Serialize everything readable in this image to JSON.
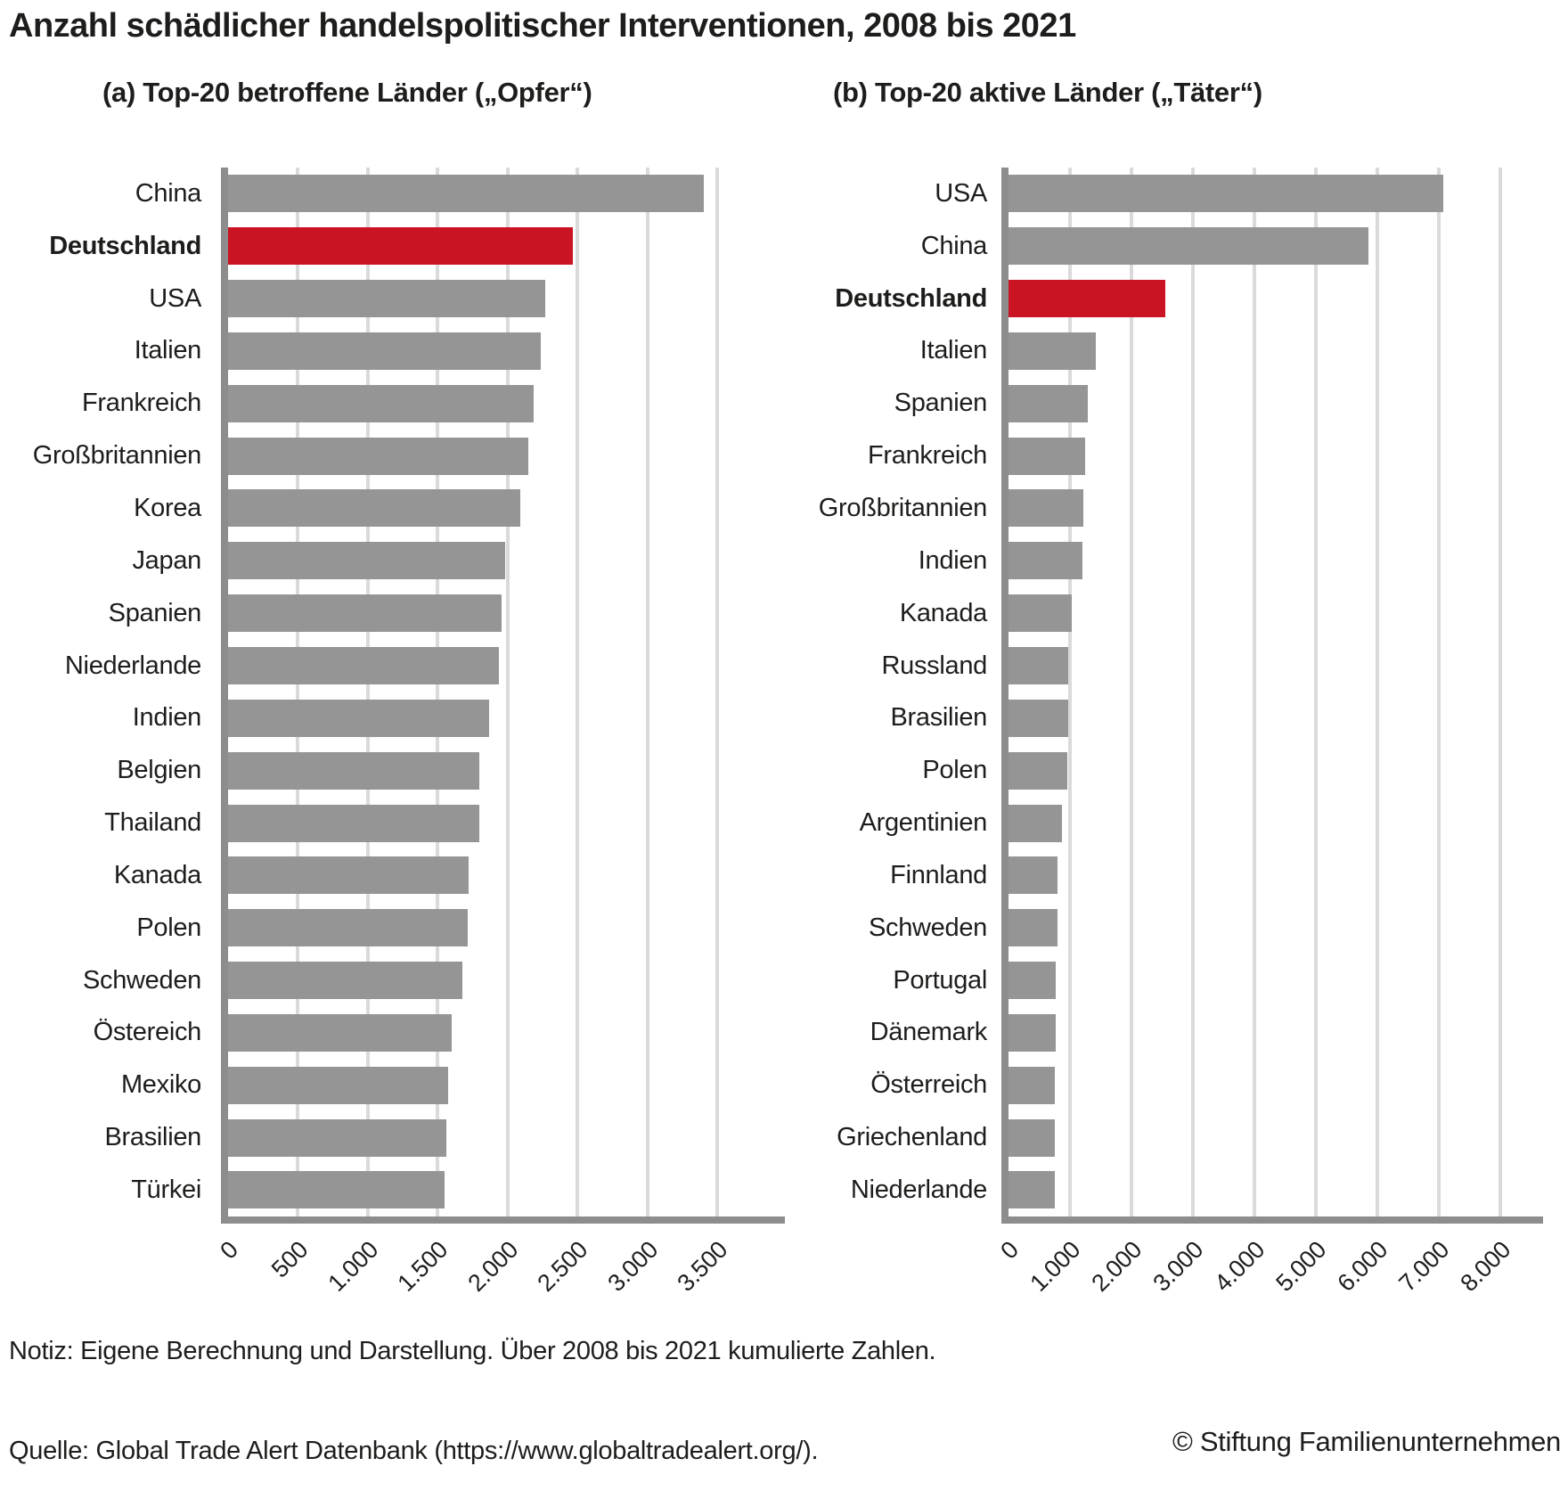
{
  "title": "Anzahl schädlicher handelspolitischer Interventionen, 2008 bis 2021",
  "footnote": "Notiz: Eigene Berechnung und Darstellung. Über 2008 bis 2021 kumulierte Zahlen.",
  "source": "Quelle: Global Trade Alert Datenbank (https://www.globaltradealert.org/).",
  "copyright": "© Stiftung Familienunternehmen",
  "colors": {
    "bar_gray": "#959595",
    "bar_red": "#cb1423",
    "axis": "#8d8d8d",
    "gridline": "#dadada",
    "text": "#1d1d1b"
  },
  "chart_data": [
    {
      "type": "bar",
      "orientation": "horizontal",
      "title": "(a) Top-20 betroffene Länder („Opfer“)",
      "categories": [
        "China",
        "Deutschland",
        "USA",
        "Italien",
        "Frankreich",
        "Großbritannien",
        "Korea",
        "Japan",
        "Spanien",
        "Niederlande",
        "Indien",
        "Belgien",
        "Thailand",
        "Kanada",
        "Polen",
        "Schweden",
        "Östereich",
        "Mexiko",
        "Brasilien",
        "Türkei"
      ],
      "values": [
        3405,
        2465,
        2270,
        2235,
        2185,
        2150,
        2090,
        1980,
        1960,
        1940,
        1870,
        1800,
        1795,
        1720,
        1715,
        1675,
        1600,
        1575,
        1560,
        1550
      ],
      "highlight_category": "Deutschland",
      "highlight_color": "#cb1423",
      "xlabel": "",
      "ylabel": "",
      "xlim": [
        0,
        3500
      ],
      "xticks": [
        "0",
        "500",
        "1.000",
        "1.500",
        "2.000",
        "2.500",
        "3.000",
        "3.500"
      ],
      "grid": true,
      "legend": false
    },
    {
      "type": "bar",
      "orientation": "horizontal",
      "title": "(b) Top-20 aktive Länder („Täter“)",
      "categories": [
        "USA",
        "China",
        "Deutschland",
        "Italien",
        "Spanien",
        "Frankreich",
        "Großbritannien",
        "Indien",
        "Kanada",
        "Russland",
        "Brasilien",
        "Polen",
        "Argentinien",
        "Finnland",
        "Schweden",
        "Portugal",
        "Dänemark",
        "Österreich",
        "Griechenland",
        "Niederlande"
      ],
      "values": [
        7070,
        5855,
        2550,
        1425,
        1290,
        1240,
        1215,
        1200,
        1025,
        975,
        970,
        960,
        875,
        800,
        795,
        765,
        765,
        760,
        755,
        750
      ],
      "highlight_category": "Deutschland",
      "highlight_color": "#cb1423",
      "xlabel": "",
      "ylabel": "",
      "xlim": [
        0,
        8000
      ],
      "xticks": [
        "0",
        "1.000",
        "2.000",
        "3.000",
        "4.000",
        "5.000",
        "6.000",
        "7.000",
        "8.000"
      ],
      "grid": true,
      "legend": false
    }
  ]
}
